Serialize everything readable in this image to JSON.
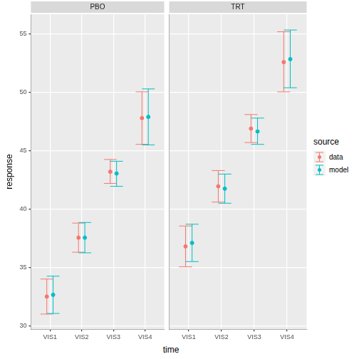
{
  "x_label": "time",
  "y_label": "response",
  "legend_title": "source",
  "legend": "right",
  "chart_data": [
    {
      "type": "scatter",
      "title": "PBO",
      "categories": [
        "VIS1",
        "VIS2",
        "VIS3",
        "VIS4"
      ],
      "ylim": [
        29.7,
        56.7
      ],
      "yticks": [
        30,
        35,
        40,
        45,
        50,
        55
      ],
      "grid": true,
      "series": [
        {
          "name": "data",
          "color": "#F8766D",
          "marker": "circle",
          "values": [
            32.5,
            37.55,
            43.2,
            47.8
          ],
          "lower": [
            31.0,
            36.3,
            42.2,
            45.55
          ],
          "upper": [
            34.0,
            38.8,
            44.25,
            50.05
          ]
        },
        {
          "name": "model",
          "color": "#00BFC4",
          "marker": "circle",
          "values": [
            32.65,
            37.55,
            43.05,
            47.9
          ],
          "lower": [
            31.05,
            36.25,
            41.95,
            45.5
          ],
          "upper": [
            34.25,
            38.85,
            44.1,
            50.3
          ]
        }
      ]
    },
    {
      "type": "scatter",
      "title": "TRT",
      "categories": [
        "VIS1",
        "VIS2",
        "VIS3",
        "VIS4"
      ],
      "ylim": [
        29.7,
        56.7
      ],
      "yticks": [
        30,
        35,
        40,
        45,
        50,
        55
      ],
      "grid": true,
      "tick_labels": "x",
      "series": [
        {
          "name": "data",
          "color": "#F8766D",
          "marker": "circle",
          "values": [
            36.8,
            41.95,
            46.9,
            52.6
          ],
          "lower": [
            35.05,
            40.6,
            45.7,
            50.05
          ],
          "upper": [
            38.55,
            43.3,
            48.1,
            55.2
          ]
        },
        {
          "name": "model",
          "color": "#00BFC4",
          "marker": "circle",
          "values": [
            37.1,
            41.75,
            46.65,
            52.85
          ],
          "lower": [
            35.5,
            40.5,
            45.55,
            50.4
          ],
          "upper": [
            38.7,
            43.0,
            47.8,
            55.35
          ]
        }
      ]
    }
  ]
}
